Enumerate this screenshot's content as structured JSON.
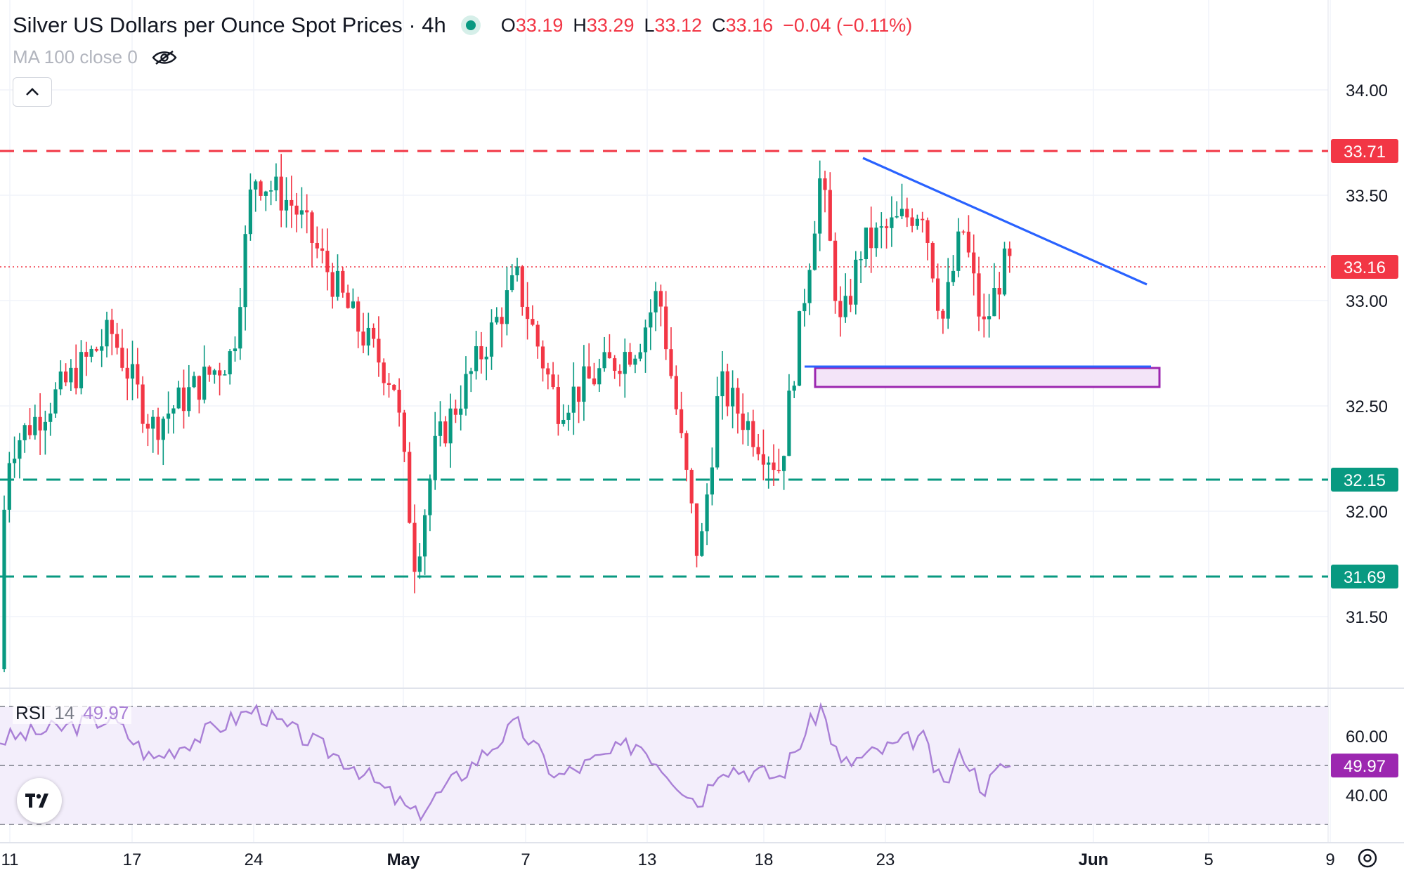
{
  "header": {
    "title": "Silver US Dollars per Ounce Spot Prices · 4h",
    "open_label": "O",
    "open": "33.19",
    "high_label": "H",
    "high": "33.29",
    "low_label": "L",
    "low": "33.12",
    "close_label": "C",
    "close": "33.16",
    "change": "−0.04 (−0.11%)"
  },
  "indicator_ma": {
    "label": "MA 100 close 0"
  },
  "indicator_rsi": {
    "name": "RSI",
    "period": "14",
    "value": "49.97"
  },
  "colors": {
    "up": "#089981",
    "down": "#f23645",
    "resistance": "#f23645",
    "support": "#089981",
    "trendline": "#2962ff",
    "zone_fill": "#f3e4f8",
    "zone_border": "#9c27b0",
    "rsi_line": "#a97fd6",
    "rsi_band": "#f3eefb",
    "rsi_badge": "#9c27b0",
    "grid": "#f0f3fa"
  },
  "chart_data": [
    {
      "type": "candlestick",
      "title": "Silver US Dollars per Ounce Spot Prices · 4h",
      "timeframe": "4h",
      "x_tick_labels": [
        "11",
        "17",
        "24",
        "May",
        "7",
        "13",
        "18",
        "23",
        "Jun",
        "5",
        "9"
      ],
      "y_tick_labels": [
        "34.00",
        "33.50",
        "33.00",
        "32.50",
        "32.00",
        "31.50"
      ],
      "ylim": [
        31.16,
        34.34
      ],
      "grid": true,
      "last_price": {
        "value": 33.16,
        "label": "33.16"
      },
      "horizontal_levels": [
        {
          "value": 33.71,
          "label": "33.71",
          "role": "resistance",
          "style": "dashed"
        },
        {
          "value": 32.15,
          "label": "32.15",
          "role": "support",
          "style": "dashed"
        },
        {
          "value": 31.69,
          "label": "31.69",
          "role": "support",
          "style": "dashed"
        }
      ],
      "trendline": {
        "from": {
          "date": "2025-05-22",
          "price": 33.71
        },
        "to": {
          "date": "2025-06-03",
          "price": 33.08
        }
      },
      "support_zone": {
        "from_date": "2025-05-20",
        "to_date": "2025-06-03",
        "top": 32.68,
        "bottom": 32.59
      },
      "ohlc_key_points": [
        {
          "date": "2025-04-10",
          "close": 31.25
        },
        {
          "date": "2025-04-11",
          "close": 32.3
        },
        {
          "date": "2025-04-16",
          "close": 32.85
        },
        {
          "date": "2025-04-18",
          "close": 32.4
        },
        {
          "date": "2025-04-22",
          "close": 32.75
        },
        {
          "date": "2025-04-23",
          "close": 33.6
        },
        {
          "date": "2025-04-25",
          "close": 33.45
        },
        {
          "date": "2025-04-28",
          "close": 32.9
        },
        {
          "date": "2025-04-30",
          "close": 32.6
        },
        {
          "date": "2025-05-01",
          "close": 31.75
        },
        {
          "date": "2025-05-02",
          "close": 32.3
        },
        {
          "date": "2025-05-06",
          "close": 33.1
        },
        {
          "date": "2025-05-08",
          "close": 32.5
        },
        {
          "date": "2025-05-12",
          "close": 32.8
        },
        {
          "date": "2025-05-13",
          "close": 33.05
        },
        {
          "date": "2025-05-15",
          "close": 31.75
        },
        {
          "date": "2025-05-16",
          "close": 32.6
        },
        {
          "date": "2025-05-19",
          "close": 32.2
        },
        {
          "date": "2025-05-20",
          "close": 32.9
        },
        {
          "date": "2025-05-21",
          "close": 33.6
        },
        {
          "date": "2025-05-22",
          "close": 32.85
        },
        {
          "date": "2025-05-23",
          "close": 33.25
        },
        {
          "date": "2025-05-26",
          "close": 33.45
        },
        {
          "date": "2025-05-27",
          "close": 32.9
        },
        {
          "date": "2025-05-28",
          "close": 33.35
        },
        {
          "date": "2025-05-29",
          "close": 32.85
        },
        {
          "date": "2025-05-30",
          "close": 33.16
        }
      ]
    },
    {
      "type": "line",
      "name": "RSI 14",
      "y_tick_labels": [
        "60.00",
        "40.00"
      ],
      "band": [
        30,
        70
      ],
      "midline": 50,
      "last_value": {
        "value": 49.97,
        "label": "49.97"
      },
      "ylim": [
        29.5,
        72.5
      ],
      "key_points": [
        {
          "date": "2025-04-10",
          "value": 58
        },
        {
          "date": "2025-04-16",
          "value": 66
        },
        {
          "date": "2025-04-18",
          "value": 52
        },
        {
          "date": "2025-04-23",
          "value": 69
        },
        {
          "date": "2025-04-28",
          "value": 50
        },
        {
          "date": "2025-05-01",
          "value": 33
        },
        {
          "date": "2025-05-06",
          "value": 64
        },
        {
          "date": "2025-05-08",
          "value": 46
        },
        {
          "date": "2025-05-12",
          "value": 58
        },
        {
          "date": "2025-05-15",
          "value": 37
        },
        {
          "date": "2025-05-16",
          "value": 50
        },
        {
          "date": "2025-05-19",
          "value": 46
        },
        {
          "date": "2025-05-21",
          "value": 70
        },
        {
          "date": "2025-05-22",
          "value": 50
        },
        {
          "date": "2025-05-26",
          "value": 60
        },
        {
          "date": "2025-05-27",
          "value": 42
        },
        {
          "date": "2025-05-28",
          "value": 55
        },
        {
          "date": "2025-05-29",
          "value": 42
        },
        {
          "date": "2025-05-30",
          "value": 49.97
        }
      ]
    }
  ]
}
